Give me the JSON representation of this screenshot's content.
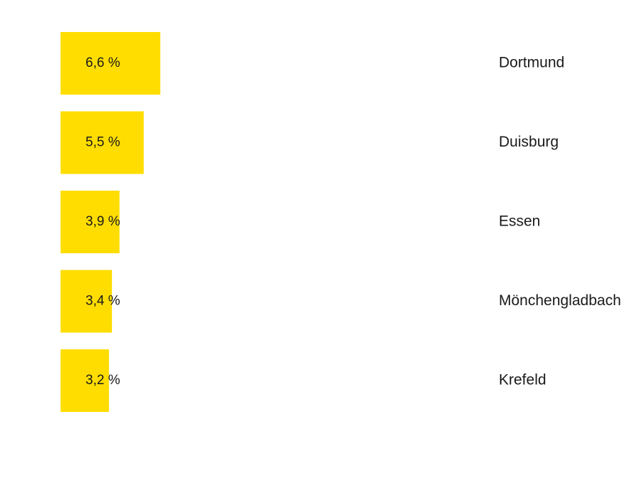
{
  "chart_data": {
    "type": "bar",
    "orientation": "horizontal",
    "categories": [
      "Dortmund",
      "Duisburg",
      "Essen",
      "Mönchengladbach",
      "Krefeld"
    ],
    "values": [
      6.6,
      5.5,
      3.9,
      3.4,
      3.2
    ],
    "value_labels": [
      "6,6 %",
      "5,5 %",
      "3,9 %",
      "3,4 %",
      "3,2 %"
    ],
    "unit": "%",
    "bar_color": "#ffdd00",
    "grid": false
  }
}
